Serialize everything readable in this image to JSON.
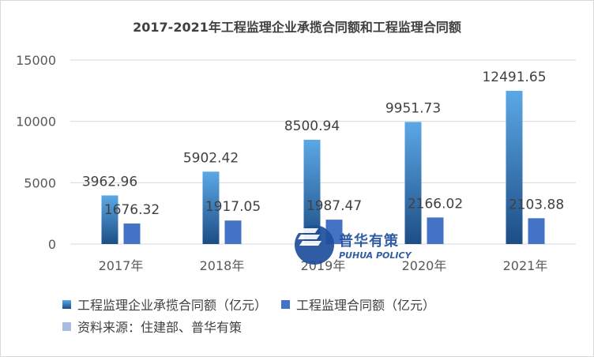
{
  "colors": {
    "series1_top": "#5ba8e6",
    "series1_bottom": "#1d4d85",
    "series2": "#4472c4",
    "source_swatch": "#a9bbe0",
    "grid": "#d9d9d9",
    "logo": "#1f4f9c"
  },
  "chart_data": {
    "type": "bar",
    "title": "2017-2021年工程监理企业承揽合同额和工程监理合同额",
    "categories": [
      "2017年",
      "2018年",
      "2019年",
      "2020年",
      "2021年"
    ],
    "series": [
      {
        "name": "工程监理企业承揽合同额（亿元）",
        "values": [
          3962.96,
          5902.42,
          8500.94,
          9951.73,
          12491.65
        ]
      },
      {
        "name": "工程监理合同额（亿元）",
        "values": [
          1676.32,
          1917.05,
          1987.47,
          2166.02,
          2103.88
        ]
      }
    ],
    "data_labels": [
      [
        "3962.96",
        "5902.42",
        "8500.94",
        "9951.73",
        "12491.65"
      ],
      [
        "1676.32",
        "1917.05",
        "1987.47",
        "2166.02",
        "2103.88"
      ]
    ],
    "ylim": [
      0,
      15000
    ],
    "yticks": [
      "0",
      "5000",
      "10000",
      "15000"
    ],
    "ytick_values": [
      0,
      5000,
      10000,
      15000
    ],
    "grid": true,
    "legend_position": "bottom-left"
  },
  "legend": {
    "source": "资料来源：住建部、普华有策"
  },
  "watermark": {
    "cn": "普华有策",
    "en": "PUHUA POLICY"
  }
}
